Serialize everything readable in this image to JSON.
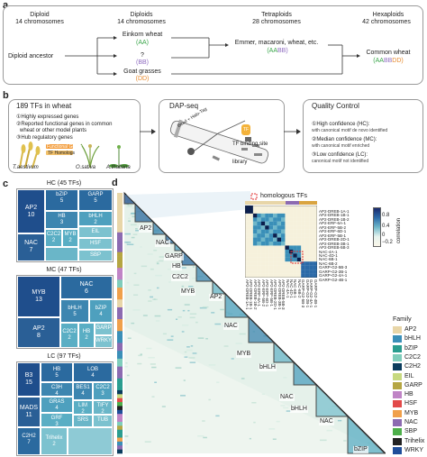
{
  "panel_a": {
    "label": "a",
    "diploid_title": "Diploid",
    "diploid_chrom": "14 chromosomes",
    "ancestor": "Diploid ancestor",
    "diploids_title": "Diploids",
    "diploids_chrom": "14 chromosomes",
    "einkorn": "Einkorn wheat",
    "einkorn_genome": "(AA)",
    "unknown": "?",
    "unknown_genome": "(BB)",
    "goat": "Goat grasses",
    "goat_genome": "(DD)",
    "tetra_title": "Tetraploids",
    "tetra_chrom": "28 chromosomes",
    "emmer": "Emmer, macaroni, wheat, etc.",
    "emmer_genome": "(AABB)",
    "hexa_title": "Hexaploids",
    "hexa_chrom": "42 chromosomes",
    "common": "Common wheat",
    "common_genome": "(AABBDD)",
    "colors": {
      "AA": "#3aa64a",
      "BB": "#8e6bbf",
      "DD": "#e68a2e"
    }
  },
  "panel_b": {
    "label": "b",
    "tfs_title": "189 TFs in wheat",
    "items": [
      "①Highly expressed genes",
      "②Reported functional genes in common",
      "wheat or other model plants",
      "③Hub regulatory genes"
    ],
    "func_genes": "Functional Genes",
    "tf_homologs": "TF Homologs",
    "species": [
      "T.aestivum",
      "O.sativa",
      "A.thaliana"
    ],
    "dap_title": "DAP-seq",
    "bead": "Bead + Halo-Tag",
    "tf": "TF",
    "binding_site": "TF binding site",
    "library": "library",
    "qc_title": "Quality Control",
    "qc": [
      {
        "head": "①High confidence (HC):",
        "sub": "with canonical motif de novo identified"
      },
      {
        "head": "②Median confidence (MC):",
        "sub": "with canonical motif enriched"
      },
      {
        "head": "③Low confidence (LC):",
        "sub": "canonical motif not identified"
      }
    ]
  },
  "panel_c": {
    "label": "c",
    "hc_title": "HC (45 TFs)",
    "mc_title": "MC (47 TFs)",
    "lc_title": "LC (97 TFs)",
    "hc": [
      {
        "name": "AP2",
        "n": "10"
      },
      {
        "name": "bZIP",
        "n": "5"
      },
      {
        "name": "GARP",
        "n": "5"
      },
      {
        "name": "HB",
        "n": "3"
      },
      {
        "name": "bHLH",
        "n": "2"
      },
      {
        "name": "NAC",
        "n": "7"
      },
      {
        "name": "C2C2",
        "n": "2"
      },
      {
        "name": "MYB",
        "n": "2"
      },
      {
        "name": "EIL",
        "n": "1"
      },
      {
        "name": "HSF",
        "n": "1"
      },
      {
        "name": "SBP",
        "n": "1"
      }
    ],
    "mc": [
      {
        "name": "MYB",
        "n": "13"
      },
      {
        "name": "NAC",
        "n": "6"
      },
      {
        "name": "bHLH",
        "n": "5"
      },
      {
        "name": "bZIP",
        "n": "4"
      },
      {
        "name": "AP2",
        "n": "8"
      },
      {
        "name": "C2C2",
        "n": "2"
      },
      {
        "name": "HB",
        "n": "2"
      },
      {
        "name": "GARP",
        "n": "1"
      },
      {
        "name": "WRKY",
        "n": "1"
      }
    ],
    "lc": [
      {
        "name": "B3",
        "n": "15"
      },
      {
        "name": "HB",
        "n": "5"
      },
      {
        "name": "LOB",
        "n": "4"
      },
      {
        "name": "C3H",
        "n": "4"
      },
      {
        "name": "MADS",
        "n": "11"
      },
      {
        "name": "BES1",
        "n": "4"
      },
      {
        "name": "C2C2",
        "n": "3"
      },
      {
        "name": "GRAS",
        "n": "4"
      },
      {
        "name": "LIM",
        "n": "2"
      },
      {
        "name": "GRF",
        "n": "3"
      },
      {
        "name": "TIFY",
        "n": "2"
      },
      {
        "name": "SRS",
        "n": "2"
      },
      {
        "name": "TUB",
        "n": "2"
      },
      {
        "name": "C2H2",
        "n": "7"
      },
      {
        "name": "Trihelix",
        "n": "2"
      }
    ]
  },
  "panel_d": {
    "label": "d",
    "homologous": "homologous TFs",
    "colorbar_ticks": [
      "0.8",
      "0.4",
      "0",
      "−0.2"
    ],
    "colorbar_label": "correlation",
    "family_title": "Family",
    "families": [
      {
        "name": "AP2",
        "color": "#e8d6a8"
      },
      {
        "name": "bHLH",
        "color": "#3a8fb8"
      },
      {
        "name": "bZIP",
        "color": "#2a9d8f"
      },
      {
        "name": "C2C2",
        "color": "#7fcdbb"
      },
      {
        "name": "C2H2",
        "color": "#0b3c5d"
      },
      {
        "name": "EIL",
        "color": "#c7d97f"
      },
      {
        "name": "GARP",
        "color": "#b5a642"
      },
      {
        "name": "HB",
        "color": "#c084c6"
      },
      {
        "name": "HSF",
        "color": "#e24a4a"
      },
      {
        "name": "MYB",
        "color": "#f0a04b"
      },
      {
        "name": "NAC",
        "color": "#8c6bb1"
      },
      {
        "name": "SBP",
        "color": "#4daf4a"
      },
      {
        "name": "Trihelix",
        "color": "#222222"
      },
      {
        "name": "WRKY",
        "color": "#1f4e9a"
      }
    ],
    "cluster_labels": [
      "AP2",
      "NAC",
      "GARP",
      "HB",
      "C2C2",
      "MYB",
      "AP2",
      "NAC",
      "MYB",
      "bHLH",
      "NAC",
      "bHLH",
      "NAC",
      "bZIP"
    ],
    "inset_rows": [
      "AP2-DREB-1A-1",
      "AP2-DREB-1B-1",
      "AP2-DREB-1B-2",
      "AP2-ERF-6A-1",
      "AP2-ERF-5B-2",
      "AP2-ERF-6D-1",
      "AP2-ERF-5B-1",
      "AP2-DREB-2D-1",
      "AP2-DREB-3B-1",
      "AP2-DREB-5B-3",
      "NAC-4A-1",
      "NAC-4D-1",
      "NAC-6B-1",
      "NAC-6B-2",
      "GARP-G2-5B-3",
      "GARP-G2-2B-1",
      "GARP-G2-4A-1",
      "GARP-G2-4B-1"
    ],
    "inset_cols": [
      "AP2-DREB-1A-1",
      "AP2-DREB-1B-1",
      "AP2-DREB-1B-2",
      "AP2-ERF-6A-1",
      "AP2-ERF-5B-2",
      "AP2-ERF-6D-1",
      "AP2-ERF-5B-1",
      "AP2-DREB-2D-1",
      "AP2-DREB-3B-1",
      "AP2-DREB-5B-3",
      "NAC-4A-1",
      "NAC-4D-1",
      "NAC-6B-1",
      "NAC-6B-2",
      "GARP-G2-5B-3",
      "GARP-G2-2B-1",
      "GARP-G2-4A-1",
      "GARP-G2-4B-1"
    ]
  }
}
